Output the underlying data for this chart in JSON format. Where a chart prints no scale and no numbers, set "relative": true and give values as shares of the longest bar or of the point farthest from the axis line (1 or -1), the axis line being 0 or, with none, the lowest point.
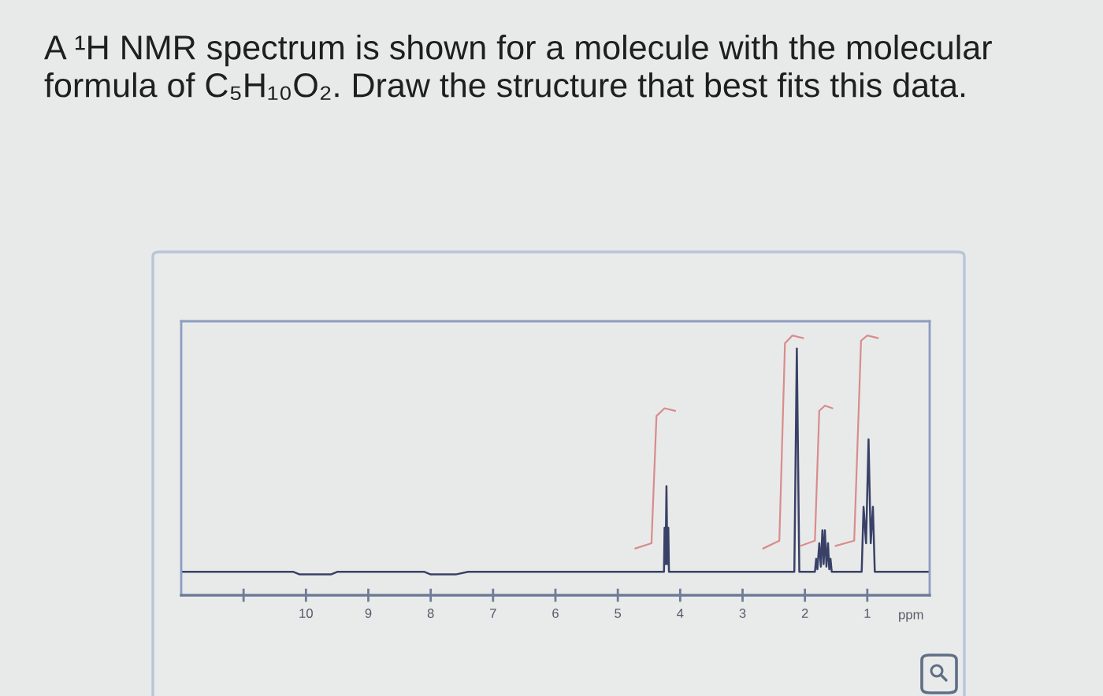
{
  "chart_data": {
    "type": "line",
    "title": "A ¹H NMR spectrum is shown for a molecule with the molecular formula of C₅H₁₀O₂. Draw the structure that best fits this data.",
    "xlabel": "ppm",
    "relative": true,
    "xlim": [
      12,
      0
    ],
    "xticks": [
      {
        "value": 11,
        "label": null
      },
      10,
      9,
      8,
      7,
      6,
      5,
      4,
      3,
      2,
      1
    ],
    "series": [
      {
        "color": "#3a4166",
        "x": [
          12.0,
          10.2,
          10.1,
          9.6,
          9.5,
          8.1,
          8.0,
          7.6,
          7.4,
          4.3,
          4.26,
          4.25,
          4.235,
          4.22,
          4.205,
          4.19,
          4.18,
          2.17,
          2.13,
          2.09,
          1.84,
          1.82,
          1.8,
          1.77,
          1.745,
          1.72,
          1.7,
          1.68,
          1.655,
          1.63,
          1.61,
          1.59,
          1.57,
          1.09,
          1.06,
          1.02,
          0.98,
          0.945,
          0.91,
          0.88,
          0.0
        ],
        "values": [
          0.09,
          0.09,
          0.08,
          0.08,
          0.09,
          0.09,
          0.08,
          0.08,
          0.09,
          0.09,
          0.09,
          0.26,
          0.12,
          0.42,
          0.12,
          0.26,
          0.09,
          0.09,
          0.95,
          0.09,
          0.09,
          0.14,
          0.1,
          0.2,
          0.11,
          0.25,
          0.12,
          0.25,
          0.11,
          0.2,
          0.1,
          0.14,
          0.09,
          0.09,
          0.34,
          0.2,
          0.6,
          0.2,
          0.34,
          0.09,
          0.09
        ]
      },
      {
        "color": "#d98c8c",
        "x": [
          4.72,
          4.46,
          4.38,
          4.25,
          4.08,
          3.0,
          2.67,
          2.41,
          2.32,
          2.2,
          2.03,
          2.05,
          2.07,
          1.84,
          1.77,
          1.68,
          1.56,
          1.53,
          1.51,
          1.21,
          1.1,
          1.0,
          0.83
        ],
        "values": [
          0.18,
          0.2,
          0.69,
          0.72,
          0.71,
          null,
          0.18,
          0.21,
          0.97,
          1.0,
          0.99,
          null,
          0.19,
          0.21,
          0.71,
          0.73,
          0.72,
          null,
          0.19,
          0.21,
          0.98,
          1.0,
          0.99
        ]
      }
    ]
  }
}
